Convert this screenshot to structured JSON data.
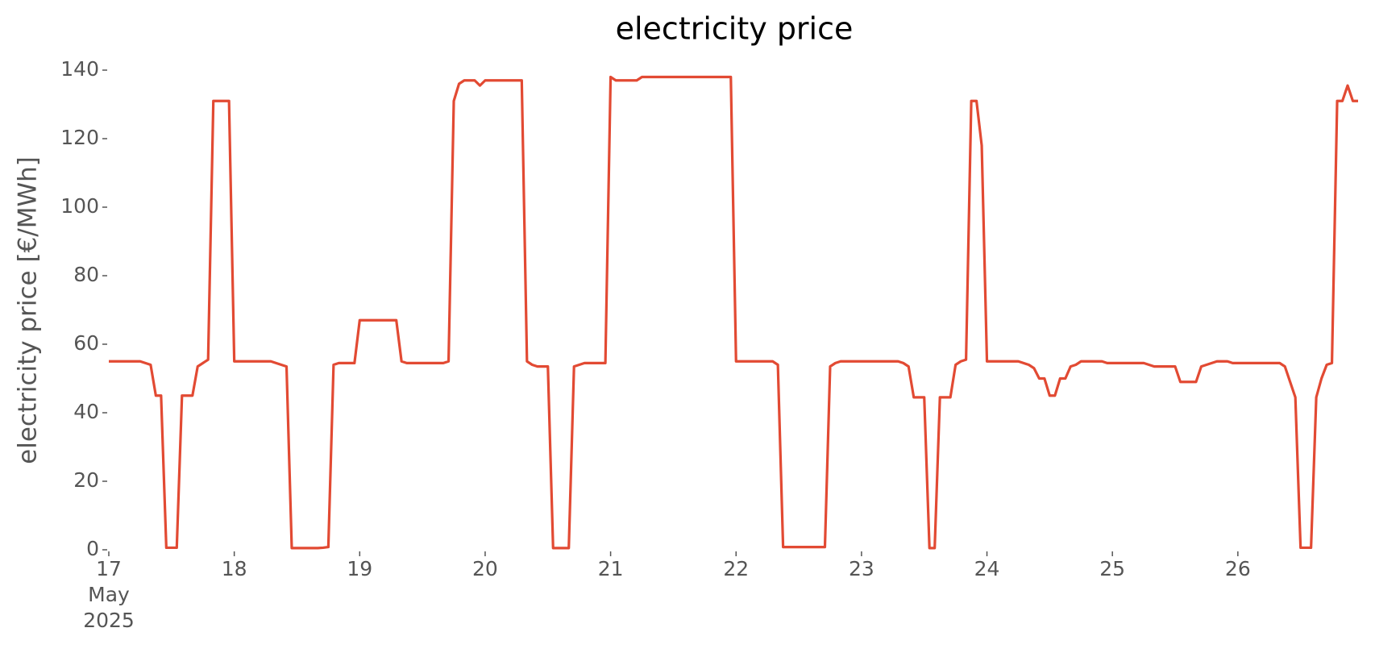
{
  "chart_data": {
    "type": "line",
    "title": "electricity price",
    "y_label": "electricity price [€/MWh]",
    "color": "#e24a33",
    "grid": false,
    "ylim": [
      0,
      140
    ],
    "yticks": [
      0,
      20,
      40,
      60,
      80,
      100,
      120,
      140
    ],
    "xlim": [
      "2025-05-17 00:00",
      "2025-05-26 23:00"
    ],
    "xticks": [
      {
        "value": "2025-05-17 00:00",
        "label": [
          "17",
          "May",
          "2025"
        ]
      },
      {
        "value": "2025-05-18 00:00",
        "label": "18"
      },
      {
        "value": "2025-05-19 00:00",
        "label": "19"
      },
      {
        "value": "2025-05-20 00:00",
        "label": "20"
      },
      {
        "value": "2025-05-21 00:00",
        "label": "21"
      },
      {
        "value": "2025-05-22 00:00",
        "label": "22"
      },
      {
        "value": "2025-05-23 00:00",
        "label": "23"
      },
      {
        "value": "2025-05-24 00:00",
        "label": "24"
      },
      {
        "value": "2025-05-25 00:00",
        "label": "25"
      },
      {
        "value": "2025-05-26 00:00",
        "label": "26"
      }
    ],
    "x": [
      "2025-05-17 00:00",
      "2025-05-17 01:00",
      "2025-05-17 02:00",
      "2025-05-17 03:00",
      "2025-05-17 04:00",
      "2025-05-17 05:00",
      "2025-05-17 06:00",
      "2025-05-17 07:00",
      "2025-05-17 08:00",
      "2025-05-17 09:00",
      "2025-05-17 10:00",
      "2025-05-17 11:00",
      "2025-05-17 12:00",
      "2025-05-17 13:00",
      "2025-05-17 14:00",
      "2025-05-17 15:00",
      "2025-05-17 16:00",
      "2025-05-17 17:00",
      "2025-05-17 18:00",
      "2025-05-17 19:00",
      "2025-05-17 20:00",
      "2025-05-17 21:00",
      "2025-05-17 22:00",
      "2025-05-17 23:00",
      "2025-05-18 00:00",
      "2025-05-18 01:00",
      "2025-05-18 02:00",
      "2025-05-18 03:00",
      "2025-05-18 04:00",
      "2025-05-18 05:00",
      "2025-05-18 06:00",
      "2025-05-18 07:00",
      "2025-05-18 08:00",
      "2025-05-18 09:00",
      "2025-05-18 10:00",
      "2025-05-18 11:00",
      "2025-05-18 12:00",
      "2025-05-18 13:00",
      "2025-05-18 14:00",
      "2025-05-18 15:00",
      "2025-05-18 16:00",
      "2025-05-18 17:00",
      "2025-05-18 18:00",
      "2025-05-18 19:00",
      "2025-05-18 20:00",
      "2025-05-18 21:00",
      "2025-05-18 22:00",
      "2025-05-18 23:00",
      "2025-05-19 00:00",
      "2025-05-19 01:00",
      "2025-05-19 02:00",
      "2025-05-19 03:00",
      "2025-05-19 04:00",
      "2025-05-19 05:00",
      "2025-05-19 06:00",
      "2025-05-19 07:00",
      "2025-05-19 08:00",
      "2025-05-19 09:00",
      "2025-05-19 10:00",
      "2025-05-19 11:00",
      "2025-05-19 12:00",
      "2025-05-19 13:00",
      "2025-05-19 14:00",
      "2025-05-19 15:00",
      "2025-05-19 16:00",
      "2025-05-19 17:00",
      "2025-05-19 18:00",
      "2025-05-19 19:00",
      "2025-05-19 20:00",
      "2025-05-19 21:00",
      "2025-05-19 22:00",
      "2025-05-19 23:00",
      "2025-05-20 00:00",
      "2025-05-20 01:00",
      "2025-05-20 02:00",
      "2025-05-20 03:00",
      "2025-05-20 04:00",
      "2025-05-20 05:00",
      "2025-05-20 06:00",
      "2025-05-20 07:00",
      "2025-05-20 08:00",
      "2025-05-20 09:00",
      "2025-05-20 10:00",
      "2025-05-20 11:00",
      "2025-05-20 12:00",
      "2025-05-20 13:00",
      "2025-05-20 14:00",
      "2025-05-20 15:00",
      "2025-05-20 16:00",
      "2025-05-20 17:00",
      "2025-05-20 18:00",
      "2025-05-20 19:00",
      "2025-05-20 20:00",
      "2025-05-20 21:00",
      "2025-05-20 22:00",
      "2025-05-20 23:00",
      "2025-05-21 00:00",
      "2025-05-21 01:00",
      "2025-05-21 02:00",
      "2025-05-21 03:00",
      "2025-05-21 04:00",
      "2025-05-21 05:00",
      "2025-05-21 06:00",
      "2025-05-21 07:00",
      "2025-05-21 08:00",
      "2025-05-21 09:00",
      "2025-05-21 10:00",
      "2025-05-21 11:00",
      "2025-05-21 12:00",
      "2025-05-21 13:00",
      "2025-05-21 14:00",
      "2025-05-21 15:00",
      "2025-05-21 16:00",
      "2025-05-21 17:00",
      "2025-05-21 18:00",
      "2025-05-21 19:00",
      "2025-05-21 20:00",
      "2025-05-21 21:00",
      "2025-05-21 22:00",
      "2025-05-21 23:00",
      "2025-05-22 00:00",
      "2025-05-22 01:00",
      "2025-05-22 02:00",
      "2025-05-22 03:00",
      "2025-05-22 04:00",
      "2025-05-22 05:00",
      "2025-05-22 06:00",
      "2025-05-22 07:00",
      "2025-05-22 08:00",
      "2025-05-22 09:00",
      "2025-05-22 10:00",
      "2025-05-22 11:00",
      "2025-05-22 12:00",
      "2025-05-22 13:00",
      "2025-05-22 14:00",
      "2025-05-22 15:00",
      "2025-05-22 16:00",
      "2025-05-22 17:00",
      "2025-05-22 18:00",
      "2025-05-22 19:00",
      "2025-05-22 20:00",
      "2025-05-22 21:00",
      "2025-05-22 22:00",
      "2025-05-22 23:00",
      "2025-05-23 00:00",
      "2025-05-23 01:00",
      "2025-05-23 02:00",
      "2025-05-23 03:00",
      "2025-05-23 04:00",
      "2025-05-23 05:00",
      "2025-05-23 06:00",
      "2025-05-23 07:00",
      "2025-05-23 08:00",
      "2025-05-23 09:00",
      "2025-05-23 10:00",
      "2025-05-23 11:00",
      "2025-05-23 12:00",
      "2025-05-23 13:00",
      "2025-05-23 14:00",
      "2025-05-23 15:00",
      "2025-05-23 16:00",
      "2025-05-23 17:00",
      "2025-05-23 18:00",
      "2025-05-23 19:00",
      "2025-05-23 20:00",
      "2025-05-23 21:00",
      "2025-05-23 22:00",
      "2025-05-23 23:00",
      "2025-05-24 00:00",
      "2025-05-24 01:00",
      "2025-05-24 02:00",
      "2025-05-24 03:00",
      "2025-05-24 04:00",
      "2025-05-24 05:00",
      "2025-05-24 06:00",
      "2025-05-24 07:00",
      "2025-05-24 08:00",
      "2025-05-24 09:00",
      "2025-05-24 10:00",
      "2025-05-24 11:00",
      "2025-05-24 12:00",
      "2025-05-24 13:00",
      "2025-05-24 14:00",
      "2025-05-24 15:00",
      "2025-05-24 16:00",
      "2025-05-24 17:00",
      "2025-05-24 18:00",
      "2025-05-24 19:00",
      "2025-05-24 20:00",
      "2025-05-24 21:00",
      "2025-05-24 22:00",
      "2025-05-24 23:00",
      "2025-05-25 00:00",
      "2025-05-25 01:00",
      "2025-05-25 02:00",
      "2025-05-25 03:00",
      "2025-05-25 04:00",
      "2025-05-25 05:00",
      "2025-05-25 06:00",
      "2025-05-25 07:00",
      "2025-05-25 08:00",
      "2025-05-25 09:00",
      "2025-05-25 10:00",
      "2025-05-25 11:00",
      "2025-05-25 12:00",
      "2025-05-25 13:00",
      "2025-05-25 14:00",
      "2025-05-25 15:00",
      "2025-05-25 16:00",
      "2025-05-25 17:00",
      "2025-05-25 18:00",
      "2025-05-25 19:00",
      "2025-05-25 20:00",
      "2025-05-25 21:00",
      "2025-05-25 22:00",
      "2025-05-25 23:00",
      "2025-05-26 00:00",
      "2025-05-26 01:00",
      "2025-05-26 02:00",
      "2025-05-26 03:00",
      "2025-05-26 04:00",
      "2025-05-26 05:00",
      "2025-05-26 06:00",
      "2025-05-26 07:00",
      "2025-05-26 08:00",
      "2025-05-26 09:00",
      "2025-05-26 10:00",
      "2025-05-26 11:00",
      "2025-05-26 12:00",
      "2025-05-26 13:00",
      "2025-05-26 14:00",
      "2025-05-26 15:00",
      "2025-05-26 16:00",
      "2025-05-26 17:00",
      "2025-05-26 18:00",
      "2025-05-26 19:00",
      "2025-05-26 20:00",
      "2025-05-26 21:00",
      "2025-05-26 22:00",
      "2025-05-26 23:00"
    ],
    "values": [
      55,
      55,
      55,
      55,
      55,
      55,
      55,
      54.5,
      54,
      45,
      45,
      0.6,
      0.6,
      0.6,
      45,
      45,
      45,
      53.5,
      54.5,
      55.5,
      131,
      131,
      131,
      131,
      55,
      55,
      55,
      55,
      55,
      55,
      55,
      55,
      54.5,
      54,
      53.5,
      0.5,
      0.5,
      0.5,
      0.5,
      0.5,
      0.5,
      0.6,
      0.8,
      54,
      54.5,
      54.5,
      54.5,
      54.5,
      67,
      67,
      67,
      67,
      67,
      67,
      67,
      67,
      55,
      54.5,
      54.5,
      54.5,
      54.5,
      54.5,
      54.5,
      54.5,
      54.5,
      55,
      131,
      136,
      137,
      137,
      137,
      135.5,
      137,
      137,
      137,
      137,
      137,
      137,
      137,
      137,
      55,
      54,
      53.5,
      53.5,
      53.5,
      0.5,
      0.5,
      0.5,
      0.5,
      53.5,
      54,
      54.5,
      54.5,
      54.5,
      54.5,
      54.5,
      138,
      137,
      137,
      137,
      137,
      137,
      138,
      138,
      138,
      138,
      138,
      138,
      138,
      138,
      138,
      138,
      138,
      138,
      138,
      138,
      138,
      138,
      138,
      138,
      55,
      55,
      55,
      55,
      55,
      55,
      55,
      55,
      54,
      0.8,
      0.8,
      0.8,
      0.8,
      0.8,
      0.8,
      0.8,
      0.8,
      0.8,
      53.5,
      54.5,
      55,
      55,
      55,
      55,
      55,
      55,
      55,
      55,
      55,
      55,
      55,
      55,
      54.5,
      53.5,
      44.5,
      44.5,
      44.5,
      0.5,
      0.5,
      44.5,
      44.5,
      44.5,
      54,
      55,
      55.5,
      131,
      131,
      118,
      55,
      55,
      55,
      55,
      55,
      55,
      55,
      54.5,
      54,
      53,
      50,
      50,
      45,
      45,
      50,
      50,
      53.5,
      54,
      55,
      55,
      55,
      55,
      55,
      54.5,
      54.5,
      54.5,
      54.5,
      54.5,
      54.5,
      54.5,
      54.5,
      54,
      53.5,
      53.5,
      53.5,
      53.5,
      53.5,
      49,
      49,
      49,
      49,
      53.5,
      54,
      54.5,
      55,
      55,
      55,
      54.5,
      54.5,
      54.5,
      54.5,
      54.5,
      54.5,
      54.5,
      54.5,
      54.5,
      54.5,
      53.5,
      49,
      44.5,
      0.6,
      0.6,
      0.6,
      44.5,
      50,
      54,
      54.5,
      131,
      131,
      135.5,
      131,
      131
    ]
  }
}
